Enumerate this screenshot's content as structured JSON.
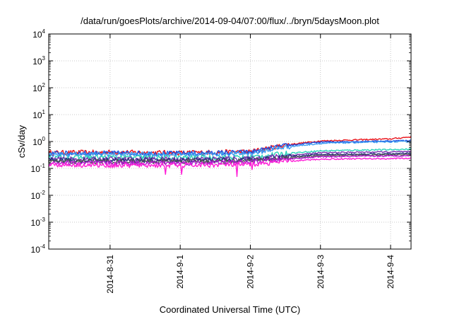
{
  "chart_data": {
    "type": "line",
    "title": "/data/run/goesPlots/archive/2014-09-04/07:00/flux/../bryn/5daysMoon.plot",
    "xlabel": "Coordinated Universal Time (UTC)",
    "ylabel": "cSv/day",
    "yscale": "log",
    "ylim": [
      0.0001,
      10000
    ],
    "y_ticks": [
      {
        "base": "10",
        "exp": "4"
      },
      {
        "base": "10",
        "exp": "3"
      },
      {
        "base": "10",
        "exp": "2"
      },
      {
        "base": "10",
        "exp": "1"
      },
      {
        "base": "10",
        "exp": "0"
      },
      {
        "base": "10",
        "exp": "-1"
      },
      {
        "base": "10",
        "exp": "-2"
      },
      {
        "base": "10",
        "exp": "-3"
      },
      {
        "base": "10",
        "exp": "-4"
      }
    ],
    "x_type": "time",
    "xlim": [
      "2014-08-30 03:00",
      "2014-09-04 07:00"
    ],
    "x_ticks": [
      {
        "label": "2014-8-31",
        "time": "2014-08-31 00:00"
      },
      {
        "label": "2014-9-1",
        "time": "2014-09-01 00:00"
      },
      {
        "label": "2014-9-2",
        "time": "2014-09-02 00:00"
      },
      {
        "label": "2014-9-3",
        "time": "2014-09-03 00:00"
      },
      {
        "label": "2014-9-4",
        "time": "2014-09-04 00:00"
      }
    ],
    "grid": true,
    "legend": "none",
    "series": [
      {
        "color": "#e8131b",
        "points": [
          [
            "2014-08-30 03:00",
            0.38
          ],
          [
            "2014-08-31 00:00",
            0.4
          ],
          [
            "2014-09-01 00:00",
            0.38
          ],
          [
            "2014-09-02 00:00",
            0.42
          ],
          [
            "2014-09-02 12:00",
            0.75
          ],
          [
            "2014-09-03 00:00",
            1.05
          ],
          [
            "2014-09-03 12:00",
            1.15
          ],
          [
            "2014-09-04 00:00",
            1.25
          ],
          [
            "2014-09-04 07:00",
            1.5
          ]
        ]
      },
      {
        "color": "#1f4fe0",
        "points": [
          [
            "2014-08-30 03:00",
            0.36
          ],
          [
            "2014-08-31 00:00",
            0.37
          ],
          [
            "2014-09-01 00:00",
            0.36
          ],
          [
            "2014-09-02 00:00",
            0.4
          ],
          [
            "2014-09-02 12:00",
            0.7
          ],
          [
            "2014-09-03 00:00",
            0.95
          ],
          [
            "2014-09-03 12:00",
            1.0
          ],
          [
            "2014-09-04 00:00",
            1.05
          ],
          [
            "2014-09-04 07:00",
            1.1
          ]
        ]
      },
      {
        "color": "#3d9cf0",
        "points": [
          [
            "2014-08-30 03:00",
            0.33
          ],
          [
            "2014-08-31 00:00",
            0.34
          ],
          [
            "2014-09-01 00:00",
            0.33
          ],
          [
            "2014-09-02 00:00",
            0.36
          ],
          [
            "2014-09-02 12:00",
            0.62
          ],
          [
            "2014-09-03 00:00",
            0.85
          ],
          [
            "2014-09-03 12:00",
            0.92
          ],
          [
            "2014-09-04 00:00",
            0.97
          ],
          [
            "2014-09-04 07:00",
            1.0
          ]
        ]
      },
      {
        "color": "#2ad2b8",
        "points": [
          [
            "2014-08-30 03:00",
            0.25
          ],
          [
            "2014-08-31 00:00",
            0.26
          ],
          [
            "2014-09-01 00:00",
            0.25
          ],
          [
            "2014-09-02 00:00",
            0.26
          ],
          [
            "2014-09-02 12:00",
            0.36
          ],
          [
            "2014-09-03 00:00",
            0.45
          ],
          [
            "2014-09-03 12:00",
            0.48
          ],
          [
            "2014-09-04 00:00",
            0.5
          ],
          [
            "2014-09-04 07:00",
            0.52
          ]
        ]
      },
      {
        "color": "#7a2fb0",
        "points": [
          [
            "2014-08-30 03:00",
            0.22
          ],
          [
            "2014-08-31 00:00",
            0.22
          ],
          [
            "2014-09-01 00:00",
            0.22
          ],
          [
            "2014-09-02 00:00",
            0.23
          ],
          [
            "2014-09-02 12:00",
            0.3
          ],
          [
            "2014-09-03 00:00",
            0.38
          ],
          [
            "2014-09-03 12:00",
            0.4
          ],
          [
            "2014-09-04 00:00",
            0.41
          ],
          [
            "2014-09-04 07:00",
            0.42
          ]
        ]
      },
      {
        "color": "#26307a",
        "points": [
          [
            "2014-08-30 03:00",
            0.2
          ],
          [
            "2014-08-31 00:00",
            0.2
          ],
          [
            "2014-09-01 00:00",
            0.2
          ],
          [
            "2014-09-02 00:00",
            0.21
          ],
          [
            "2014-09-02 12:00",
            0.27
          ],
          [
            "2014-09-03 00:00",
            0.33
          ],
          [
            "2014-09-03 12:00",
            0.34
          ],
          [
            "2014-09-04 00:00",
            0.35
          ],
          [
            "2014-09-04 07:00",
            0.36
          ]
        ]
      },
      {
        "color": "#555555",
        "points": [
          [
            "2014-08-30 03:00",
            0.18
          ],
          [
            "2014-08-31 00:00",
            0.18
          ],
          [
            "2014-09-01 00:00",
            0.18
          ],
          [
            "2014-09-02 00:00",
            0.19
          ],
          [
            "2014-09-02 12:00",
            0.24
          ],
          [
            "2014-09-03 00:00",
            0.3
          ],
          [
            "2014-09-03 12:00",
            0.31
          ],
          [
            "2014-09-04 00:00",
            0.32
          ],
          [
            "2014-09-04 07:00",
            0.33
          ]
        ]
      },
      {
        "color": "#b01ad0",
        "points": [
          [
            "2014-08-30 03:00",
            0.16
          ],
          [
            "2014-08-31 00:00",
            0.16
          ],
          [
            "2014-09-01 00:00",
            0.16
          ],
          [
            "2014-09-02 00:00",
            0.17
          ],
          [
            "2014-09-02 12:00",
            0.22
          ],
          [
            "2014-09-03 00:00",
            0.27
          ],
          [
            "2014-09-03 12:00",
            0.28
          ],
          [
            "2014-09-04 00:00",
            0.29
          ],
          [
            "2014-09-04 07:00",
            0.3
          ]
        ]
      },
      {
        "color": "#ff1fd6",
        "points": [
          [
            "2014-08-30 03:00",
            0.14
          ],
          [
            "2014-08-31 00:00",
            0.13
          ],
          [
            "2014-09-01 00:00",
            0.13
          ],
          [
            "2014-09-02 00:00",
            0.14
          ],
          [
            "2014-09-02 12:00",
            0.18
          ],
          [
            "2014-09-03 00:00",
            0.22
          ],
          [
            "2014-09-03 12:00",
            0.23
          ],
          [
            "2014-09-04 00:00",
            0.23
          ],
          [
            "2014-09-04 07:00",
            0.24
          ]
        ]
      }
    ],
    "dips": [
      {
        "time": "2014-08-31 19:00",
        "y": 0.06
      },
      {
        "time": "2014-09-01 00:30",
        "y": 0.06
      },
      {
        "time": "2014-09-01 19:30",
        "y": 0.05
      },
      {
        "time": "2014-09-02 00:30",
        "y": 0.09
      }
    ]
  }
}
